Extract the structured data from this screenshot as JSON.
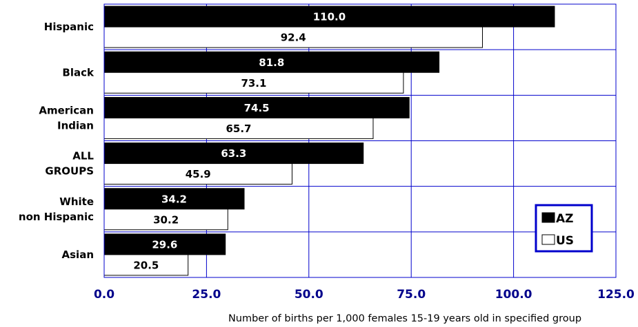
{
  "chart_data": {
    "type": "bar",
    "orientation": "horizontal",
    "categories": [
      [
        "Hispanic"
      ],
      [
        "Black"
      ],
      [
        "American",
        "Indian"
      ],
      [
        "ALL",
        "GROUPS"
      ],
      [
        "White",
        "non Hispanic"
      ],
      [
        "Asian"
      ]
    ],
    "series": [
      {
        "name": "AZ",
        "values": [
          110.0,
          81.8,
          74.5,
          63.3,
          34.2,
          29.6
        ],
        "color": "#000000"
      },
      {
        "name": "US",
        "values": [
          92.4,
          73.1,
          65.7,
          45.9,
          30.2,
          20.5
        ],
        "color": "#ffffff"
      }
    ],
    "value_labels": {
      "AZ": [
        "110.0",
        "81.8",
        "74.5",
        "63.3",
        "34.2",
        "29.6"
      ],
      "US": [
        "92.4",
        "73.1",
        "65.7",
        "45.9",
        "30.2",
        "20.5"
      ]
    },
    "xlim": [
      0,
      125
    ],
    "xticks": [
      "0.0",
      "25.0",
      "50.0",
      "75.0",
      "100.0",
      "125.0"
    ],
    "xlabel": "Number of births per 1,000 females 15-19 years old in specified group",
    "grid": true,
    "grid_color": "#0000cc",
    "tick_color": "#00008b",
    "legend_position": "bottom-right",
    "legend_border_color": "#0000cc"
  }
}
